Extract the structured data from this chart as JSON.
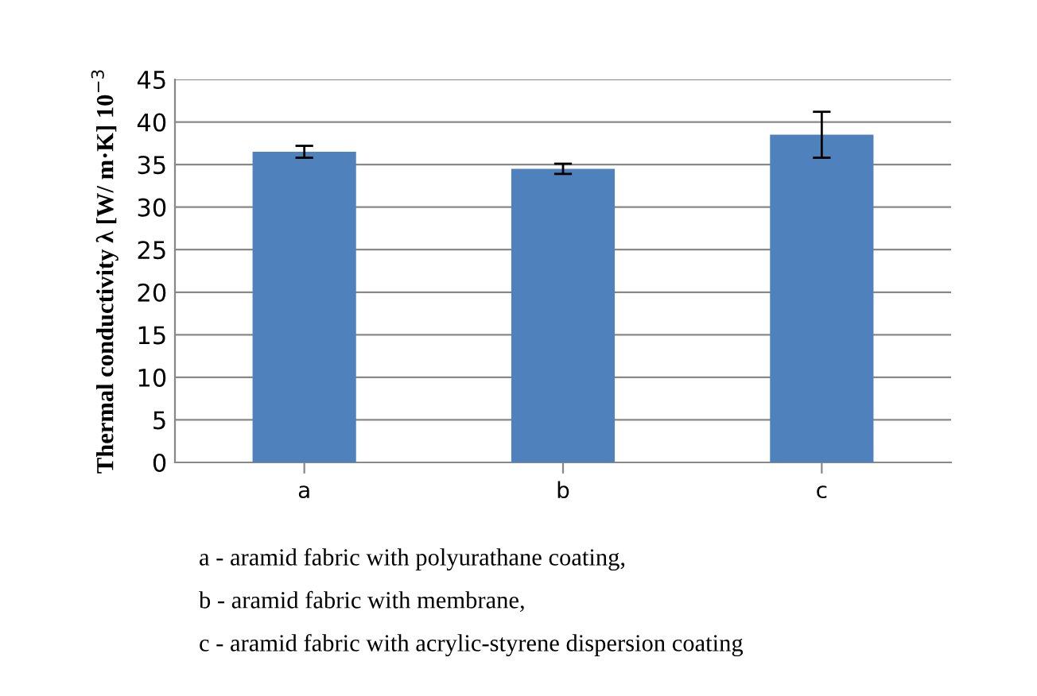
{
  "chart_data": {
    "type": "bar",
    "ylabel": "Thermal conductivity λ [W/ m·K] 10$^{−3}$",
    "categories": [
      "a",
      "b",
      "c"
    ],
    "values": [
      36.5,
      34.5,
      38.5
    ],
    "errors": [
      0.7,
      0.6,
      2.7
    ],
    "color": "#4f81bd",
    "ylim": [
      0,
      45
    ],
    "yticks": [
      0,
      5,
      10,
      15,
      20,
      25,
      30,
      35,
      40,
      45
    ],
    "grid": "y",
    "legend": false,
    "annotations": [
      "a - aramid fabric with polyurathane coating,",
      "b - aramid fabric with membrane,",
      "c - aramid fabric with acrylic-styrene dispersion coating"
    ]
  }
}
